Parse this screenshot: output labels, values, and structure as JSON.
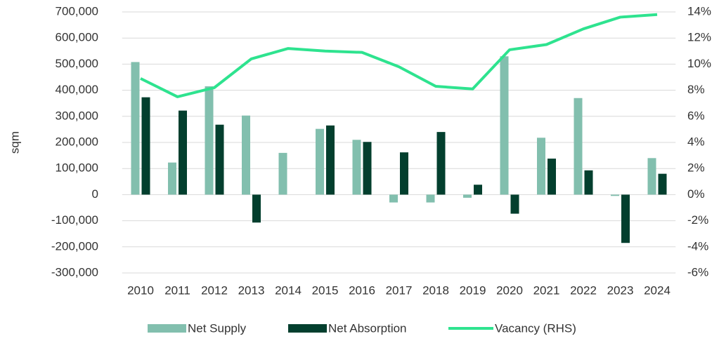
{
  "chart_data": {
    "type": "bar-line",
    "y_label": "sqm",
    "categories": [
      "2010",
      "2011",
      "2012",
      "2013",
      "2014",
      "2015",
      "2016",
      "2017",
      "2018",
      "2019",
      "2020",
      "2021",
      "2022",
      "2023",
      "2024"
    ],
    "series": [
      {
        "name": "Net Supply",
        "type": "bar",
        "color": "#82bfae",
        "values": [
          508000,
          123000,
          415000,
          303000,
          160000,
          252000,
          210000,
          -30000,
          -30000,
          -12000,
          530000,
          218000,
          370000,
          -5000,
          140000
        ]
      },
      {
        "name": "Net Absorption",
        "type": "bar",
        "color": "#033f2e",
        "values": [
          373000,
          322000,
          268000,
          -107000,
          0,
          265000,
          202000,
          162000,
          240000,
          38000,
          -73000,
          138000,
          93000,
          -185000,
          80000
        ]
      },
      {
        "name": "Vacancy (RHS)",
        "type": "line",
        "axis": "y2",
        "color": "#2ee38f",
        "values": [
          8.9,
          7.5,
          8.2,
          10.4,
          11.2,
          11.0,
          10.9,
          9.8,
          8.3,
          8.1,
          11.1,
          11.5,
          12.7,
          13.6,
          13.8
        ]
      }
    ],
    "ylim": [
      -300000,
      700000
    ],
    "yticks": [
      {
        "value": -300000,
        "label": "-300,000"
      },
      {
        "value": -200000,
        "label": "-200,000"
      },
      {
        "value": -100000,
        "label": "-100,000"
      },
      0,
      {
        "value": 100000,
        "label": "100,000"
      },
      {
        "value": 200000,
        "label": "200,000"
      },
      {
        "value": 300000,
        "label": "300,000"
      },
      {
        "value": 400000,
        "label": "400,000"
      },
      {
        "value": 500000,
        "label": "500,000"
      },
      {
        "value": 600000,
        "label": "600,000"
      },
      {
        "value": 700000,
        "label": "700,000"
      }
    ],
    "y2lim": [
      -6,
      14
    ],
    "y2ticks": [
      {
        "value": -6,
        "label": "-6%"
      },
      {
        "value": -4,
        "label": "-4%"
      },
      {
        "value": -2,
        "label": "-2%"
      },
      {
        "value": 0,
        "label": "0%"
      },
      {
        "value": 2,
        "label": "2%"
      },
      {
        "value": 4,
        "label": "4%"
      },
      {
        "value": 6,
        "label": "6%"
      },
      {
        "value": 8,
        "label": "8%"
      },
      {
        "value": 10,
        "label": "10%"
      },
      {
        "value": 12,
        "label": "12%"
      },
      {
        "value": 14,
        "label": "14%"
      }
    ],
    "grid": true,
    "legend": "bottom"
  }
}
